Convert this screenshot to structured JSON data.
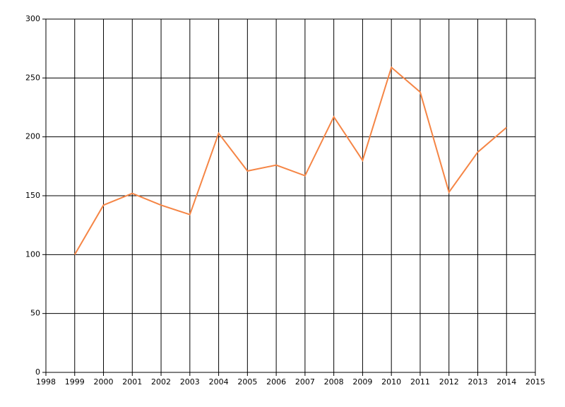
{
  "chart_data": {
    "type": "line",
    "x": [
      1999,
      2000,
      2001,
      2002,
      2003,
      2004,
      2005,
      2006,
      2007,
      2008,
      2009,
      2010,
      2011,
      2012,
      2013,
      2014
    ],
    "series": [
      {
        "color": "#f58545",
        "values": [
          100,
          142,
          152,
          142,
          134,
          203,
          171,
          176,
          167,
          217,
          180,
          259,
          238,
          153,
          187,
          208
        ]
      }
    ],
    "xlim": [
      1998,
      2015
    ],
    "xticks": [
      1998,
      1999,
      2000,
      2001,
      2002,
      2003,
      2004,
      2005,
      2006,
      2007,
      2008,
      2009,
      2010,
      2011,
      2012,
      2013,
      2014,
      2015
    ],
    "ylim": [
      0,
      300
    ],
    "yticks": [
      0,
      50,
      100,
      150,
      200,
      250,
      300
    ],
    "grid": true
  }
}
